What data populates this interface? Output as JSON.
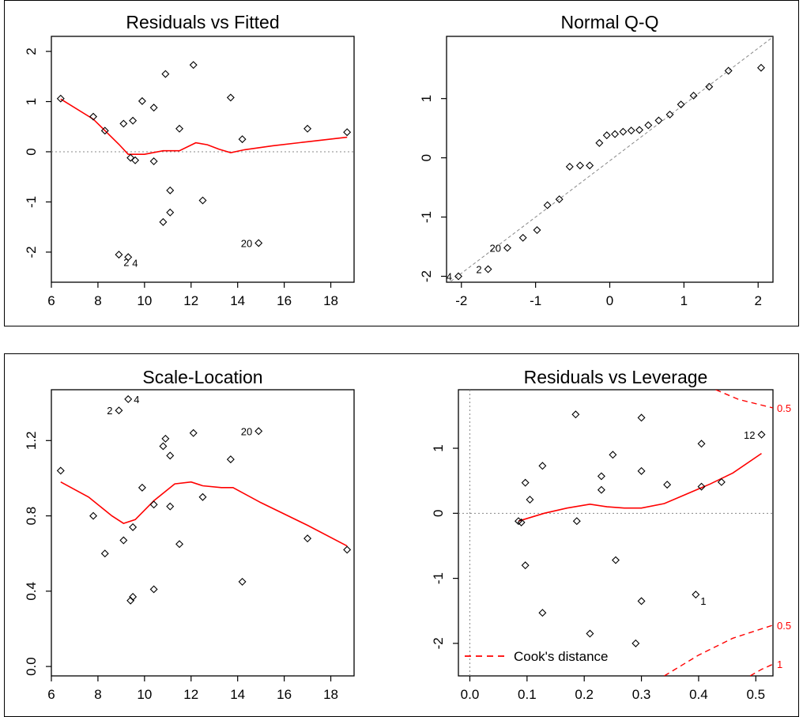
{
  "chart_data": [
    {
      "type": "scatter",
      "title": "Residuals vs Fitted",
      "xlabel": "",
      "ylabel": "",
      "xlim": [
        6,
        19
      ],
      "ylim": [
        -2.6,
        2.3
      ],
      "x_ticks": [
        6,
        8,
        10,
        12,
        14,
        16,
        18
      ],
      "y_ticks": [
        -2,
        -1,
        0,
        1,
        2
      ],
      "reference_line": {
        "type": "h",
        "value": 0,
        "style": "dotted-gray"
      },
      "points": [
        [
          6.4,
          1.06
        ],
        [
          7.8,
          0.7
        ],
        [
          8.3,
          0.42
        ],
        [
          8.9,
          -2.05
        ],
        [
          9.1,
          0.56
        ],
        [
          9.3,
          -2.1
        ],
        [
          9.4,
          -0.12
        ],
        [
          9.5,
          0.62
        ],
        [
          9.6,
          -0.17
        ],
        [
          9.9,
          1.01
        ],
        [
          10.4,
          0.88
        ],
        [
          10.4,
          -0.19
        ],
        [
          10.8,
          -1.4
        ],
        [
          10.9,
          1.55
        ],
        [
          11.1,
          -0.77
        ],
        [
          11.1,
          -1.21
        ],
        [
          11.5,
          0.46
        ],
        [
          12.1,
          1.73
        ],
        [
          12.5,
          -0.97
        ],
        [
          13.7,
          1.08
        ],
        [
          14.2,
          0.25
        ],
        [
          14.9,
          -1.82
        ],
        [
          17.0,
          0.46
        ],
        [
          18.7,
          0.39
        ]
      ],
      "smooth": [
        [
          6.4,
          1.05
        ],
        [
          7.8,
          0.65
        ],
        [
          8.9,
          0.15
        ],
        [
          9.3,
          -0.05
        ],
        [
          10.0,
          -0.05
        ],
        [
          10.8,
          0.02
        ],
        [
          11.5,
          0.02
        ],
        [
          12.2,
          0.18
        ],
        [
          12.7,
          0.14
        ],
        [
          13.2,
          0.05
        ],
        [
          13.7,
          -0.02
        ],
        [
          14.3,
          0.04
        ],
        [
          15.5,
          0.12
        ],
        [
          17.0,
          0.2
        ],
        [
          18.7,
          0.29
        ]
      ],
      "point_labels": [
        {
          "text": "2",
          "x": 9.3,
          "y": -2.1
        },
        {
          "text": "4",
          "x": 9.3,
          "y": -2.1
        },
        {
          "text": "20",
          "x": 14.9,
          "y": -1.82
        }
      ]
    },
    {
      "type": "scatter",
      "title": "Normal Q-Q",
      "xlabel": "",
      "ylabel": "",
      "xlim": [
        -2.2,
        2.2
      ],
      "ylim": [
        -2.1,
        2.05
      ],
      "x_ticks": [
        -2,
        -1,
        0,
        1,
        2
      ],
      "y_ticks": [
        -2,
        -1,
        0,
        1
      ],
      "reference_line": {
        "type": "qq",
        "slope": 0.95,
        "intercept": -0.05,
        "style": "dashed-gray"
      },
      "points": [
        [
          -2.04,
          -2.0
        ],
        [
          -1.64,
          -1.88
        ],
        [
          -1.38,
          -1.52
        ],
        [
          -1.17,
          -1.35
        ],
        [
          -0.98,
          -1.22
        ],
        [
          -0.84,
          -0.8
        ],
        [
          -0.68,
          -0.7
        ],
        [
          -0.54,
          -0.15
        ],
        [
          -0.4,
          -0.13
        ],
        [
          -0.27,
          -0.13
        ],
        [
          -0.14,
          0.25
        ],
        [
          -0.04,
          0.38
        ],
        [
          0.07,
          0.4
        ],
        [
          0.18,
          0.44
        ],
        [
          0.29,
          0.46
        ],
        [
          0.4,
          0.47
        ],
        [
          0.52,
          0.55
        ],
        [
          0.66,
          0.63
        ],
        [
          0.81,
          0.73
        ],
        [
          0.96,
          0.9
        ],
        [
          1.13,
          1.05
        ],
        [
          1.34,
          1.2
        ],
        [
          1.6,
          1.47
        ],
        [
          2.04,
          1.52
        ]
      ],
      "point_labels": [
        {
          "text": "4",
          "x": -2.04,
          "y": -2.0
        },
        {
          "text": "2",
          "x": -1.64,
          "y": -1.88
        },
        {
          "text": "20",
          "x": -1.38,
          "y": -1.52
        }
      ]
    },
    {
      "type": "scatter",
      "title": "Scale-Location",
      "xlabel": "",
      "ylabel": "",
      "xlim": [
        6,
        19
      ],
      "ylim": [
        -0.05,
        1.47
      ],
      "x_ticks": [
        6,
        8,
        10,
        12,
        14,
        16,
        18
      ],
      "y_ticks": [
        0.0,
        0.4,
        0.8,
        1.2
      ],
      "y_tick_labels": [
        "0.0",
        "0.4",
        "0.8",
        "1.2"
      ],
      "points": [
        [
          6.4,
          1.04
        ],
        [
          7.8,
          0.8
        ],
        [
          8.3,
          0.6
        ],
        [
          8.9,
          1.36
        ],
        [
          9.1,
          0.67
        ],
        [
          9.3,
          1.42
        ],
        [
          9.4,
          0.35
        ],
        [
          9.5,
          0.37
        ],
        [
          9.5,
          0.74
        ],
        [
          9.9,
          0.95
        ],
        [
          10.4,
          0.86
        ],
        [
          10.4,
          0.41
        ],
        [
          10.8,
          1.17
        ],
        [
          10.9,
          1.21
        ],
        [
          11.1,
          0.85
        ],
        [
          11.1,
          1.12
        ],
        [
          11.5,
          0.65
        ],
        [
          12.1,
          1.24
        ],
        [
          12.5,
          0.9
        ],
        [
          13.7,
          1.1
        ],
        [
          14.2,
          0.45
        ],
        [
          14.9,
          1.25
        ],
        [
          17.0,
          0.68
        ],
        [
          18.7,
          0.62
        ]
      ],
      "smooth": [
        [
          6.4,
          0.98
        ],
        [
          7.6,
          0.9
        ],
        [
          8.6,
          0.8
        ],
        [
          9.1,
          0.76
        ],
        [
          9.6,
          0.78
        ],
        [
          10.4,
          0.88
        ],
        [
          11.3,
          0.97
        ],
        [
          12.0,
          0.98
        ],
        [
          12.5,
          0.96
        ],
        [
          13.3,
          0.95
        ],
        [
          13.8,
          0.95
        ],
        [
          15.0,
          0.87
        ],
        [
          17.0,
          0.75
        ],
        [
          18.7,
          0.64
        ]
      ],
      "point_labels": [
        {
          "text": "4",
          "x": 9.3,
          "y": 1.42
        },
        {
          "text": "2",
          "x": 8.9,
          "y": 1.36
        },
        {
          "text": "20",
          "x": 14.9,
          "y": 1.25
        }
      ]
    },
    {
      "type": "scatter",
      "title": "Residuals vs Leverage",
      "xlabel": "",
      "ylabel": "",
      "xlim": [
        -0.02,
        0.53
      ],
      "ylim": [
        -2.5,
        1.9
      ],
      "x_ticks": [
        0.0,
        0.1,
        0.2,
        0.3,
        0.4,
        0.5
      ],
      "x_tick_labels": [
        "0.0",
        "0.1",
        "0.2",
        "0.3",
        "0.4",
        "0.5"
      ],
      "y_ticks": [
        -2,
        -1,
        0,
        1
      ],
      "reference_lines": [
        {
          "type": "h",
          "value": 0,
          "style": "dotted-gray"
        },
        {
          "type": "v",
          "value": 0,
          "style": "dotted-gray"
        }
      ],
      "points": [
        [
          0.085,
          -0.12
        ],
        [
          0.09,
          -0.14
        ],
        [
          0.097,
          0.47
        ],
        [
          0.097,
          -0.8
        ],
        [
          0.105,
          0.21
        ],
        [
          0.127,
          0.73
        ],
        [
          0.127,
          -1.53
        ],
        [
          0.185,
          1.52
        ],
        [
          0.187,
          -0.12
        ],
        [
          0.21,
          -1.85
        ],
        [
          0.23,
          0.57
        ],
        [
          0.23,
          0.36
        ],
        [
          0.25,
          0.9
        ],
        [
          0.255,
          -0.72
        ],
        [
          0.29,
          -2.0
        ],
        [
          0.3,
          1.47
        ],
        [
          0.3,
          0.65
        ],
        [
          0.3,
          -1.35
        ],
        [
          0.345,
          0.44
        ],
        [
          0.395,
          -1.25
        ],
        [
          0.405,
          1.07
        ],
        [
          0.405,
          0.41
        ],
        [
          0.44,
          0.48
        ],
        [
          0.51,
          1.21
        ]
      ],
      "smooth": [
        [
          0.085,
          -0.12
        ],
        [
          0.13,
          0.0
        ],
        [
          0.17,
          0.08
        ],
        [
          0.21,
          0.14
        ],
        [
          0.24,
          0.1
        ],
        [
          0.27,
          0.08
        ],
        [
          0.3,
          0.08
        ],
        [
          0.34,
          0.15
        ],
        [
          0.38,
          0.3
        ],
        [
          0.42,
          0.45
        ],
        [
          0.46,
          0.62
        ],
        [
          0.51,
          0.92
        ]
      ],
      "point_labels": [
        {
          "text": "12",
          "x": 0.51,
          "y": 1.21
        },
        {
          "text": "1",
          "x": 0.395,
          "y": -1.25
        }
      ],
      "cooks_contours": [
        {
          "label": "0.5",
          "points": [
            [
              0.43,
              1.9
            ],
            [
              0.47,
              1.75
            ],
            [
              0.53,
              1.62
            ]
          ]
        },
        {
          "label": "0.5",
          "points": [
            [
              0.34,
              -2.5
            ],
            [
              0.4,
              -2.18
            ],
            [
              0.46,
              -1.92
            ],
            [
              0.53,
              -1.72
            ]
          ]
        },
        {
          "label": "1",
          "points": [
            [
              0.49,
              -2.5
            ],
            [
              0.51,
              -2.4
            ],
            [
              0.53,
              -2.32
            ]
          ]
        }
      ],
      "legend": {
        "entries": [
          {
            "label": "Cook's distance",
            "color": "#ff0000",
            "style": "dashed"
          }
        ],
        "position": "bottom-left"
      }
    }
  ],
  "colors": {
    "points": "#000000",
    "smooth": "#ff0000",
    "reference": "#888888",
    "cooks": "#ff0000",
    "frame": "#000000"
  }
}
